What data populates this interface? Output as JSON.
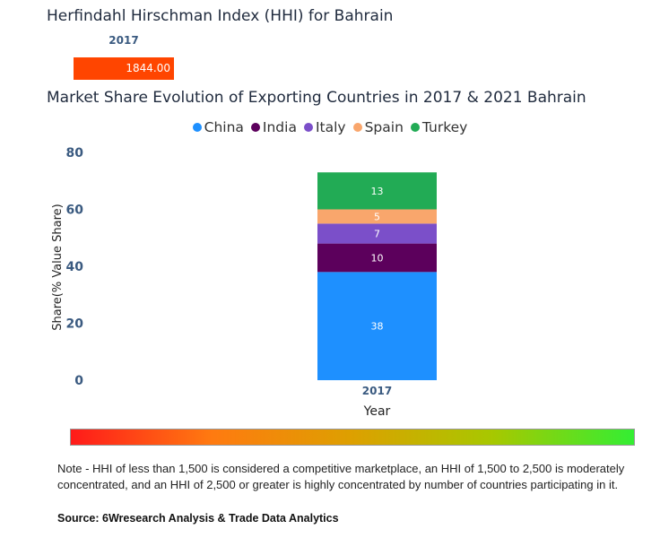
{
  "hhi": {
    "title": "Herfindahl Hirschman Index (HHI) for Bahrain",
    "year": "2017",
    "value": "1844.00",
    "bar_color": "#ff4500"
  },
  "chart_data": {
    "type": "bar",
    "stacked": true,
    "title": "Market Share Evolution of Exporting Countries in 2017 & 2021 Bahrain",
    "xlabel": "Year",
    "ylabel": "Share(% Value Share)",
    "categories": [
      "2017"
    ],
    "ylim": [
      0,
      80
    ],
    "yticks": [
      0,
      20,
      40,
      60,
      80
    ],
    "legend_position": "top-center",
    "series": [
      {
        "name": "China",
        "values": [
          38
        ],
        "color": "#1e90ff"
      },
      {
        "name": "India",
        "values": [
          10
        ],
        "color": "#5c005c"
      },
      {
        "name": "Italy",
        "values": [
          7
        ],
        "color": "#7b4fc9"
      },
      {
        "name": "Spain",
        "values": [
          5
        ],
        "color": "#f9a66c"
      },
      {
        "name": "Turkey",
        "values": [
          13
        ],
        "color": "#22ab55"
      }
    ]
  },
  "note": "Note - HHI of less than 1,500 is considered a competitive marketplace, an HHI of 1,500 to 2,500 is moderately concentrated, and an HHI of 2,500 or greater is highly concentrated by number of countries participating in it.",
  "source": "Source: 6Wresearch Analysis & Trade Data Analytics"
}
